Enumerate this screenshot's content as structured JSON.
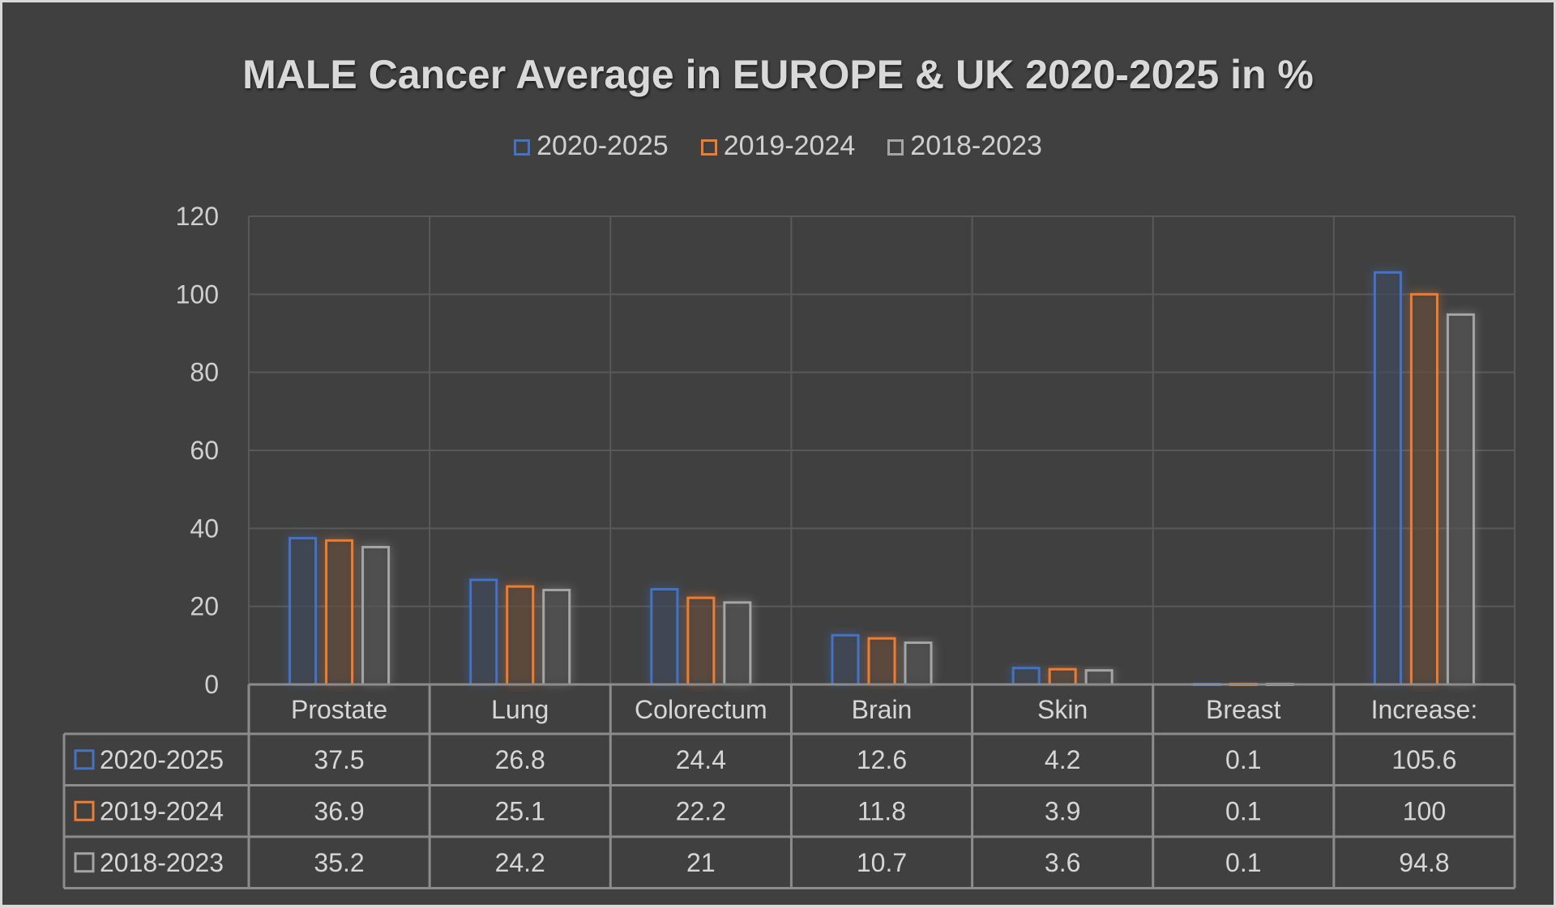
{
  "chart_data": {
    "type": "bar",
    "title": "MALE Cancer Average in EUROPE & UK 2020-2025 in %",
    "xlabel": "",
    "ylabel": "",
    "ylim": [
      0,
      120
    ],
    "yticks": [
      0,
      20,
      40,
      60,
      80,
      100,
      120
    ],
    "grid": true,
    "legend_position": "top",
    "categories": [
      "Prostate",
      "Lung",
      "Colorectum",
      "Brain",
      "Skin",
      "Breast",
      "Increase:"
    ],
    "series": [
      {
        "name": "2020-2025",
        "color": "#4472c4",
        "values": [
          37.5,
          26.8,
          24.4,
          12.6,
          4.2,
          0.1,
          105.6
        ]
      },
      {
        "name": "2019-2024",
        "color": "#ed7d31",
        "values": [
          36.9,
          25.1,
          22.2,
          11.8,
          3.9,
          0.1,
          100
        ]
      },
      {
        "name": "2018-2023",
        "color": "#a5a5a5",
        "values": [
          35.2,
          24.2,
          21,
          10.7,
          3.6,
          0.1,
          94.8
        ]
      }
    ],
    "data_table": {
      "visible": true,
      "rows": [
        {
          "label": "2020-2025",
          "cells": [
            "37.5",
            "26.8",
            "24.4",
            "12.6",
            "4.2",
            "0.1",
            "105.6"
          ]
        },
        {
          "label": "2019-2024",
          "cells": [
            "36.9",
            "25.1",
            "22.2",
            "11.8",
            "3.9",
            "0.1",
            "100"
          ]
        },
        {
          "label": "2018-2023",
          "cells": [
            "35.2",
            "24.2",
            "21",
            "10.7",
            "3.6",
            "0.1",
            "94.8"
          ]
        }
      ]
    }
  },
  "colors": {
    "background": "#404040",
    "gridline": "#595959",
    "text": "#d9d9d9",
    "table_border": "#8c8c8c"
  }
}
